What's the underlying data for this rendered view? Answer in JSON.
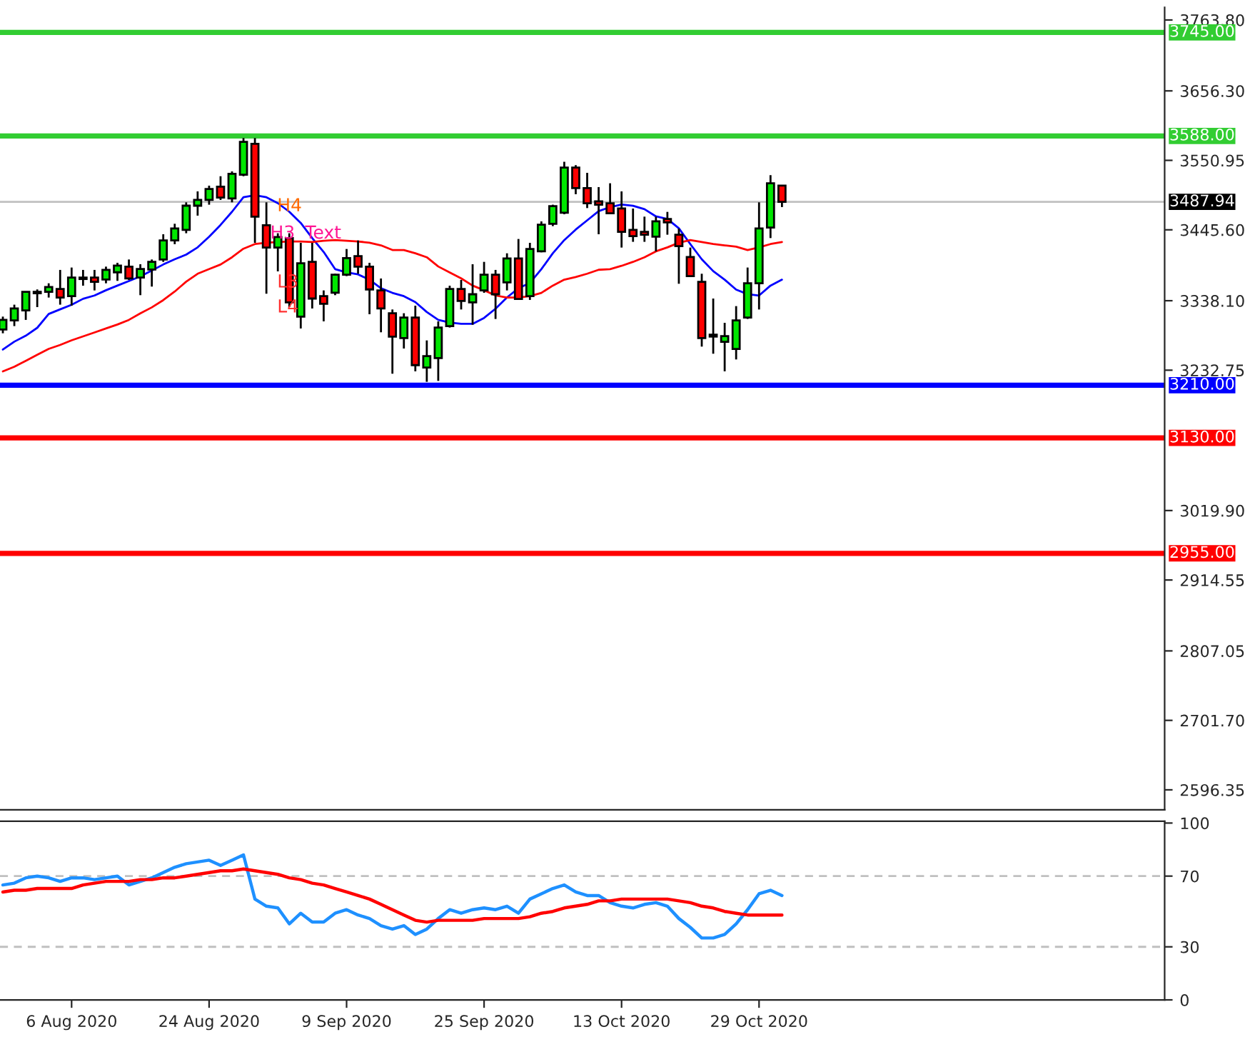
{
  "chart_data": [
    {
      "type": "candlestick",
      "categories": [
        null,
        null,
        null,
        null,
        null,
        null,
        null,
        null,
        null,
        null,
        null,
        null,
        null,
        null,
        null,
        null,
        null,
        null,
        null,
        null,
        null,
        null,
        null,
        null,
        null,
        null,
        null,
        null,
        null,
        null,
        null,
        null,
        null,
        null,
        null,
        null,
        null,
        null,
        null,
        null,
        null,
        null,
        null,
        null,
        null,
        null,
        null,
        null,
        null,
        null,
        null,
        null,
        null,
        null,
        null,
        null,
        null,
        null,
        null,
        null,
        null,
        null,
        null,
        null,
        null,
        null,
        null,
        null,
        null
      ],
      "ohlc": [
        [
          3294.5,
          3314.0,
          3288.7,
          3309.0
        ],
        [
          3308.2,
          3332.1,
          3299.6,
          3326.3
        ],
        [
          3323.4,
          3351.6,
          3309.0,
          3351.6
        ],
        [
          3349.4,
          3355.2,
          3328.4,
          3351.6
        ],
        [
          3351.6,
          3364.5,
          3342.9,
          3358.8
        ],
        [
          3355.9,
          3384.8,
          3332.1,
          3342.9
        ],
        [
          3345.1,
          3388.4,
          3330.6,
          3373.2
        ],
        [
          3371.0,
          3384.8,
          3360.9,
          3373.2
        ],
        [
          3373.2,
          3384.8,
          3353.7,
          3366.7
        ],
        [
          3370.3,
          3389.8,
          3364.5,
          3384.8
        ],
        [
          3381.2,
          3395.6,
          3368.2,
          3391.3
        ],
        [
          3389.8,
          3400.6,
          3369.6,
          3371.8
        ],
        [
          3373.2,
          3393.4,
          3346.5,
          3386.2
        ],
        [
          3385.5,
          3400.6,
          3359.5,
          3397.0
        ],
        [
          3400.6,
          3438.9,
          3397.0,
          3429.5
        ],
        [
          3429.5,
          3454.8,
          3423.8,
          3447.6
        ],
        [
          3445.4,
          3487.3,
          3440.4,
          3482.2
        ],
        [
          3482.2,
          3503.9,
          3467.1,
          3490.9
        ],
        [
          3490.9,
          3512.6,
          3483.7,
          3507.5
        ],
        [
          3511.1,
          3527.0,
          3490.9,
          3494.5
        ],
        [
          3493.1,
          3534.2,
          3487.3,
          3530.6
        ],
        [
          3529.2,
          3584.8,
          3527.0,
          3579.0
        ],
        [
          3576.1,
          3584.8,
          3425.9,
          3465.6
        ],
        [
          3452.6,
          3487.3,
          3348.7,
          3418.7
        ],
        [
          3418.7,
          3440.4,
          3382.6,
          3434.6
        ],
        [
          3433.1,
          3440.4,
          3328.4,
          3335.7
        ],
        [
          3314.0,
          3425.9,
          3296.0,
          3394.9
        ],
        [
          3397.0,
          3425.9,
          3326.3,
          3341.4
        ],
        [
          3345.1,
          3353.7,
          3306.8,
          3333.5
        ],
        [
          3350.1,
          3379.0,
          3346.5,
          3377.5
        ],
        [
          3377.5,
          3416.5,
          3375.4,
          3402.8
        ],
        [
          3405.7,
          3429.5,
          3379.0,
          3389.8
        ],
        [
          3389.8,
          3395.6,
          3317.6,
          3355.2
        ],
        [
          3353.7,
          3371.8,
          3290.2,
          3326.3
        ],
        [
          3319.1,
          3324.8,
          3227.4,
          3283.7
        ],
        [
          3281.5,
          3319.1,
          3265.6,
          3312.6
        ],
        [
          3312.6,
          3330.6,
          3231.0,
          3240.4
        ],
        [
          3236.8,
          3277.9,
          3215.1,
          3254.1
        ],
        [
          3251.2,
          3306.8,
          3216.5,
          3297.4
        ],
        [
          3299.6,
          3360.9,
          3297.4,
          3355.9
        ],
        [
          3355.9,
          3369.6,
          3324.8,
          3337.8
        ],
        [
          3335.7,
          3393.4,
          3301.7,
          3347.9
        ],
        [
          3353.7,
          3397.0,
          3350.1,
          3377.5
        ],
        [
          3377.5,
          3384.8,
          3310.4,
          3347.9
        ],
        [
          3366.0,
          3410.0,
          3353.7,
          3402.1
        ],
        [
          3402.1,
          3431.7,
          3339.3,
          3340.7
        ],
        [
          3345.1,
          3425.9,
          3339.3,
          3416.5
        ],
        [
          3412.9,
          3458.4,
          3411.5,
          3453.4
        ],
        [
          3454.8,
          3483.7,
          3451.2,
          3481.5
        ],
        [
          3471.4,
          3548.7,
          3469.2,
          3540.0
        ],
        [
          3540.0,
          3543.6,
          3499.6,
          3508.9
        ],
        [
          3508.9,
          3532.1,
          3478.6,
          3485.8
        ],
        [
          3488.7,
          3510.4,
          3438.9,
          3483.7
        ],
        [
          3485.8,
          3516.2,
          3469.2,
          3470.7
        ],
        [
          3477.9,
          3503.9,
          3418.7,
          3442.5
        ],
        [
          3445.4,
          3477.9,
          3427.4,
          3436.0
        ],
        [
          3442.5,
          3465.6,
          3427.4,
          3438.2
        ],
        [
          3435.3,
          3465.6,
          3412.9,
          3458.4
        ],
        [
          3462.0,
          3472.8,
          3438.2,
          3457.0
        ],
        [
          3438.2,
          3447.6,
          3363.8,
          3420.9
        ],
        [
          3404.3,
          3418.7,
          3373.9,
          3375.4
        ],
        [
          3366.7,
          3379.0,
          3268.5,
          3281.5
        ],
        [
          3286.6,
          3341.4,
          3257.7,
          3283.7
        ],
        [
          3275.7,
          3304.6,
          3231.0,
          3284.4
        ],
        [
          3264.9,
          3329.9,
          3249.0,
          3308.2
        ],
        [
          3312.6,
          3388.4,
          3310.4,
          3364.5
        ],
        [
          3364.5,
          3487.3,
          3324.8,
          3447.6
        ],
        [
          3449.0,
          3528.4,
          3433.1,
          3516.2
        ],
        [
          3512.6,
          3512.6,
          3480.1,
          3487.94
        ]
      ],
      "series": [
        {
          "type": "line",
          "color": "#0000ff",
          "values": [
            3264,
            3276,
            3285,
            3297,
            3318,
            3325,
            3332,
            3341,
            3346,
            3354,
            3361,
            3368,
            3375,
            3384,
            3393,
            3401,
            3408,
            3419,
            3435,
            3453,
            3473,
            3495,
            3498,
            3495,
            3486,
            3473,
            3456,
            3433,
            3412,
            3386,
            3381,
            3378,
            3370,
            3357,
            3350,
            3345,
            3336,
            3321,
            3309,
            3305,
            3303,
            3303,
            3312,
            3326,
            3343,
            3357,
            3365,
            3386,
            3410,
            3430,
            3446,
            3460,
            3474,
            3480,
            3484,
            3482,
            3477,
            3466,
            3462,
            3448,
            3424,
            3401,
            3383,
            3370,
            3355,
            3348,
            3346,
            3361,
            3370
          ]
        },
        {
          "type": "line",
          "color": "#ff0000",
          "values": [
            3231,
            3238,
            3247,
            3256,
            3265,
            3271,
            3278,
            3284,
            3290,
            3296,
            3302,
            3309,
            3319,
            3328,
            3339,
            3352,
            3367,
            3379,
            3386,
            3393,
            3404,
            3417,
            3424,
            3426,
            3427,
            3428,
            3428,
            3427,
            3429,
            3430,
            3429,
            3428,
            3426,
            3422,
            3415,
            3415,
            3410,
            3404,
            3390,
            3381,
            3372,
            3361,
            3354,
            3346,
            3343,
            3343,
            3345,
            3350,
            3361,
            3370,
            3374,
            3379,
            3385,
            3386,
            3391,
            3397,
            3404,
            3413,
            3419,
            3426,
            3430,
            3427,
            3424,
            3422,
            3420,
            3415,
            3419,
            3424,
            3427
          ]
        }
      ],
      "ylim": [
        2566,
        3783
      ],
      "yticks": [
        {
          "value": 3763.8,
          "label": "3763.80"
        },
        {
          "value": 3656.3,
          "label": "3656.30"
        },
        {
          "value": 3550.95,
          "label": "3550.95"
        },
        {
          "value": 3445.6,
          "label": "3445.60"
        },
        {
          "value": 3338.1,
          "label": "3338.10"
        },
        {
          "value": 3232.75,
          "label": "3232.75"
        },
        {
          "value": 3019.9,
          "label": "3019.90"
        },
        {
          "value": 2914.55,
          "label": "2914.55"
        },
        {
          "value": 2807.05,
          "label": "2807.05"
        },
        {
          "value": 2701.7,
          "label": "2701.70"
        },
        {
          "value": 2596.35,
          "label": "2596.35"
        }
      ],
      "ref_lines": [
        {
          "axis": "y",
          "value": 3745,
          "label": "3745.00",
          "color": "#32cd32"
        },
        {
          "axis": "y",
          "value": 3588,
          "label": "3588.00",
          "color": "#32cd32"
        },
        {
          "axis": "y",
          "value": 3487.94,
          "label": "3487.94",
          "color": "#c0c0c0"
        },
        {
          "axis": "y",
          "value": 3210,
          "label": "3210.00",
          "color": "#0000ff"
        },
        {
          "axis": "y",
          "value": 3130,
          "label": "3130.00",
          "color": "#ff0000"
        },
        {
          "axis": "y",
          "value": 2955,
          "label": "2955.00",
          "color": "#ff0000"
        }
      ],
      "annotations": [
        "H4",
        "H3",
        "Text",
        "L3",
        "L4"
      ],
      "tick_labels": "y",
      "grid": false,
      "legend": false
    },
    {
      "type": "line",
      "categories": [
        null,
        null,
        null,
        null,
        null,
        null,
        "6 Aug 2020",
        null,
        null,
        null,
        null,
        null,
        null,
        null,
        null,
        null,
        null,
        null,
        "24 Aug 2020",
        null,
        null,
        null,
        null,
        null,
        null,
        null,
        null,
        null,
        null,
        null,
        "9 Sep 2020",
        null,
        null,
        null,
        null,
        null,
        null,
        null,
        null,
        null,
        null,
        null,
        "25 Sep 2020",
        null,
        null,
        null,
        null,
        null,
        null,
        null,
        null,
        null,
        null,
        null,
        "13 Oct 2020",
        null,
        null,
        null,
        null,
        null,
        null,
        null,
        null,
        null,
        null,
        null,
        "29 Oct 2020",
        null,
        null
      ],
      "series": [
        {
          "color": "#1e90ff",
          "values": [
            65,
            66,
            69,
            70,
            69,
            67,
            69,
            69,
            68,
            69,
            70,
            65,
            67,
            69,
            72,
            75,
            77,
            78,
            79,
            76,
            79,
            82,
            57,
            53,
            52,
            43,
            49,
            44,
            44,
            49,
            51,
            48,
            46,
            42,
            40,
            42,
            37,
            40,
            46,
            51,
            49,
            51,
            52,
            51,
            53,
            49,
            57,
            60,
            63,
            65,
            61,
            59,
            59,
            55,
            53,
            52,
            54,
            55,
            53,
            46,
            41,
            35,
            35,
            37,
            43,
            51,
            60,
            62,
            59
          ]
        },
        {
          "color": "#ff0000",
          "values": [
            61,
            62,
            62,
            63,
            63,
            63,
            63,
            65,
            66,
            67,
            67,
            67,
            68,
            68,
            69,
            69,
            70,
            71,
            72,
            73,
            73,
            74,
            73,
            72,
            71,
            69,
            68,
            66,
            65,
            63,
            61,
            59,
            57,
            54,
            51,
            48,
            45,
            44,
            45,
            45,
            45,
            45,
            46,
            46,
            46,
            46,
            47,
            49,
            50,
            52,
            53,
            54,
            56,
            56,
            57,
            57,
            57,
            57,
            57,
            56,
            55,
            53,
            52,
            50,
            49,
            48,
            48,
            48,
            48
          ]
        }
      ],
      "ylim": [
        0,
        101
      ],
      "yticks": [
        0,
        30,
        70,
        100
      ],
      "ref_lines": [
        {
          "axis": "y",
          "value": 30,
          "color": "#c0c0c0",
          "line_style": "dashed"
        },
        {
          "axis": "y",
          "value": 70,
          "color": "#c0c0c0",
          "line_style": "dashed"
        }
      ],
      "grid": false,
      "legend": false
    }
  ]
}
